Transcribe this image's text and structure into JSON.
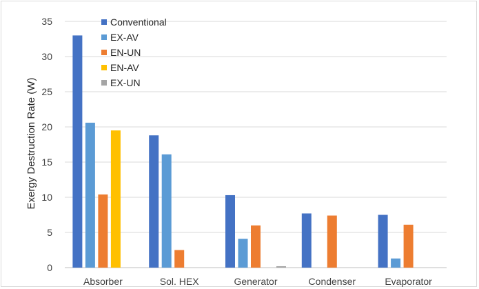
{
  "chart_data": {
    "type": "bar",
    "title": "",
    "xlabel": "",
    "ylabel": "Exergy Destruction Rate (W)",
    "ylim": [
      0,
      35
    ],
    "yticks": [
      0,
      5,
      10,
      15,
      20,
      25,
      30,
      35
    ],
    "grid": true,
    "legend_position": "top-left",
    "categories": [
      "Absorber",
      "Sol. HEX",
      "Generator",
      "Condenser",
      "Evaporator"
    ],
    "series": [
      {
        "name": "Conventional",
        "color": "#4472c4",
        "values": [
          33.0,
          18.8,
          10.3,
          7.7,
          7.5
        ]
      },
      {
        "name": "EX-AV",
        "color": "#5b9bd5",
        "values": [
          20.6,
          16.1,
          4.1,
          0,
          1.3
        ]
      },
      {
        "name": "EN-UN",
        "color": "#ed7d31",
        "values": [
          10.4,
          2.5,
          6.0,
          7.4,
          6.1
        ]
      },
      {
        "name": "EN-AV",
        "color": "#ffc000",
        "values": [
          19.5,
          0,
          0,
          0,
          0
        ]
      },
      {
        "name": "EX-UN",
        "color": "#a5a5a5",
        "values": [
          0,
          0,
          0.2,
          0,
          0
        ]
      }
    ]
  }
}
